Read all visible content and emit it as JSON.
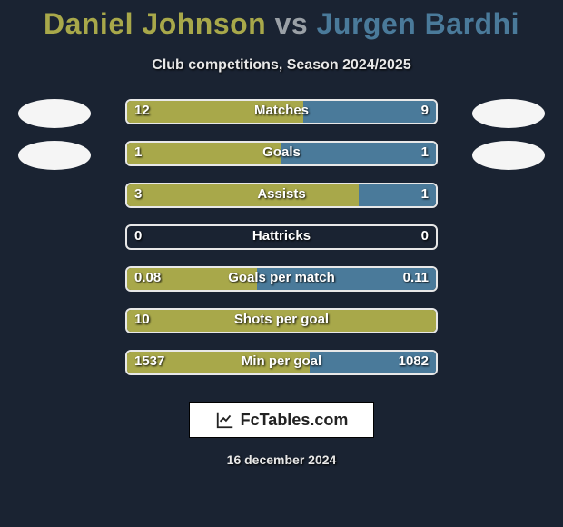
{
  "title": {
    "player1": "Daniel Johnson",
    "vs": "vs",
    "player2": "Jurgen Bardhi",
    "p1_color": "#a8a84a",
    "p2_color": "#4a7a9a",
    "vs_color": "#9aa0a6"
  },
  "subtitle": "Club competitions, Season 2024/2025",
  "chart": {
    "bar_bg_border": "#e8e8e8",
    "left_color": "#a8a84a",
    "right_color": "#4a7a9a",
    "text_color": "#ffffff",
    "background_color": "#1a2332",
    "stats": [
      {
        "label": "Matches",
        "left_val": "12",
        "right_val": "9",
        "left_pct": 57,
        "right_pct": 43,
        "show_left_photo": true,
        "show_right_photo": true
      },
      {
        "label": "Goals",
        "left_val": "1",
        "right_val": "1",
        "left_pct": 50,
        "right_pct": 50,
        "show_left_photo": true,
        "show_right_photo": true
      },
      {
        "label": "Assists",
        "left_val": "3",
        "right_val": "1",
        "left_pct": 75,
        "right_pct": 25,
        "show_left_photo": false,
        "show_right_photo": false
      },
      {
        "label": "Hattricks",
        "left_val": "0",
        "right_val": "0",
        "left_pct": 0,
        "right_pct": 0,
        "show_left_photo": false,
        "show_right_photo": false
      },
      {
        "label": "Goals per match",
        "left_val": "0.08",
        "right_val": "0.11",
        "left_pct": 42,
        "right_pct": 58,
        "show_left_photo": false,
        "show_right_photo": false
      },
      {
        "label": "Shots per goal",
        "left_val": "10",
        "right_val": "",
        "left_pct": 100,
        "right_pct": 0,
        "show_left_photo": false,
        "show_right_photo": false
      },
      {
        "label": "Min per goal",
        "left_val": "1537",
        "right_val": "1082",
        "left_pct": 59,
        "right_pct": 41,
        "show_left_photo": false,
        "show_right_photo": false
      }
    ]
  },
  "footer": {
    "brand": "FcTables.com",
    "date": "16 december 2024"
  }
}
